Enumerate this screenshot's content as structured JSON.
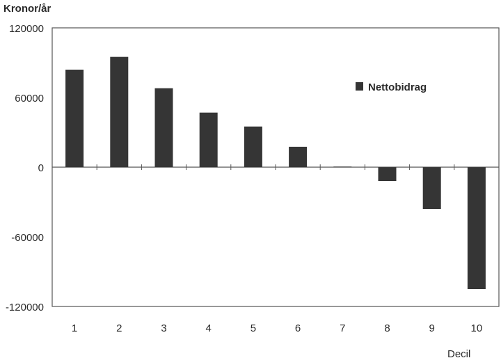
{
  "chart_data": {
    "type": "bar",
    "ylabel": "Kronor/år",
    "xlabel": "Decil",
    "categories": [
      "1",
      "2",
      "3",
      "4",
      "5",
      "6",
      "7",
      "8",
      "9",
      "10"
    ],
    "series": [
      {
        "name": "Nettobidrag",
        "values": [
          84000,
          95000,
          68000,
          47000,
          35000,
          17500,
          500,
          -12000,
          -36000,
          -105000
        ]
      }
    ],
    "ylim": [
      -120000,
      120000
    ],
    "yticks": [
      "120000",
      "60000",
      "0",
      "-60000",
      "-120000"
    ],
    "grid": false,
    "legend": "top-right",
    "colors": {
      "bar": "#353535",
      "axis": "#555555"
    }
  }
}
